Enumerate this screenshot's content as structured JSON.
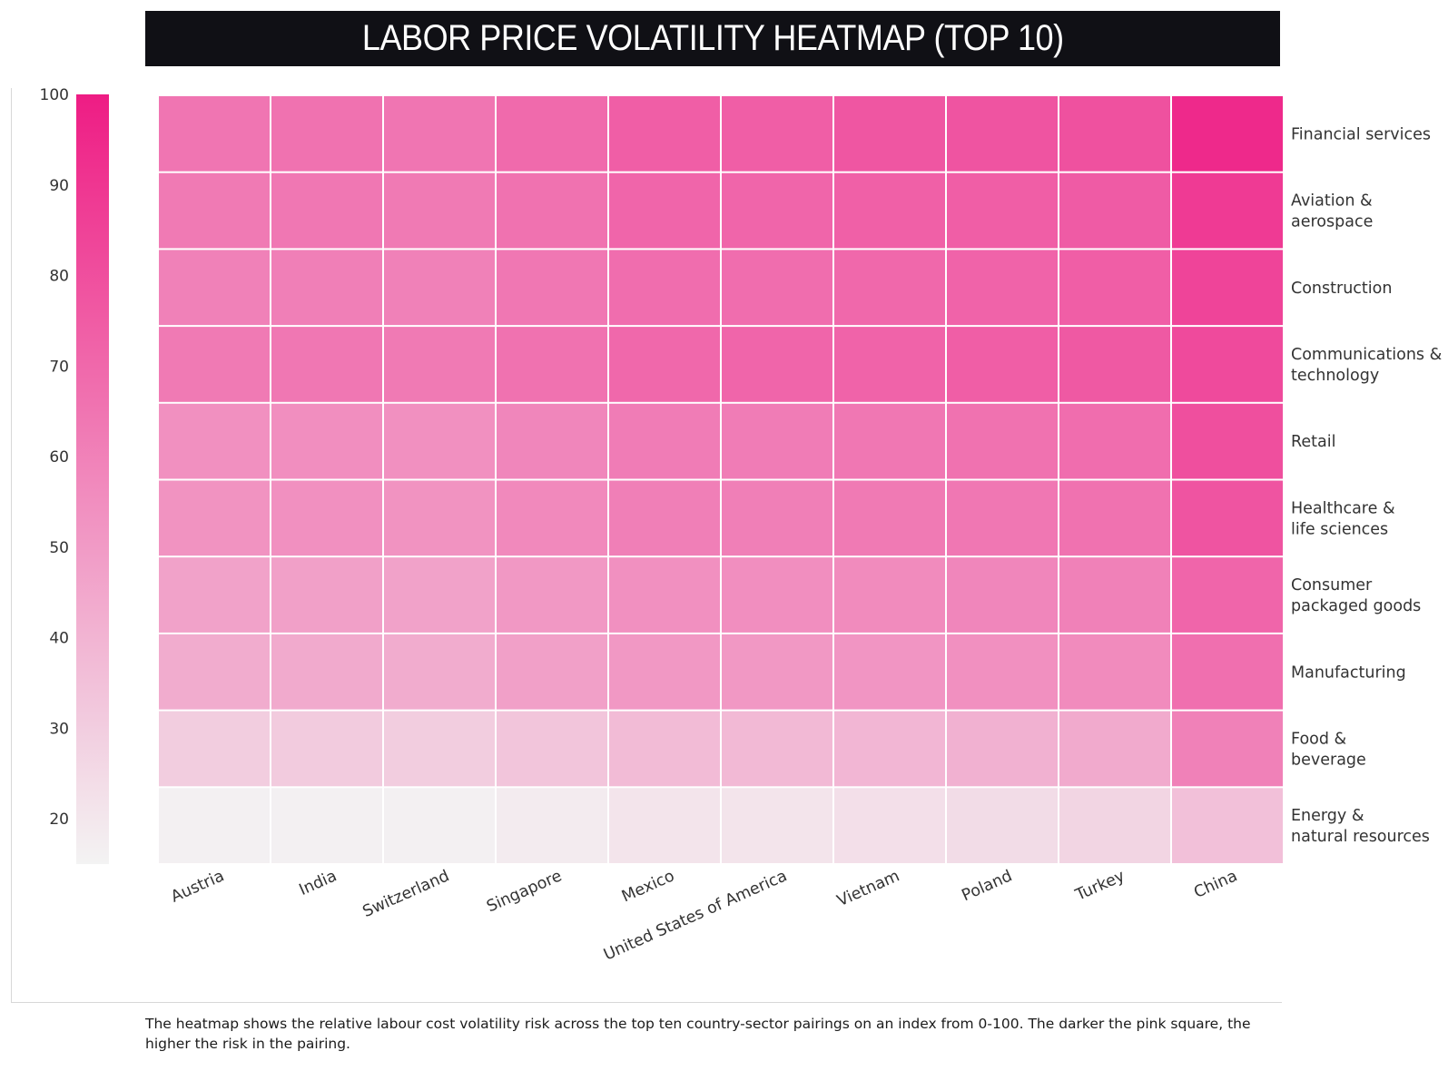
{
  "chart_data": {
    "type": "heatmap",
    "title": "LABOR PRICE VOLATILITY HEATMAP (TOP 10)",
    "xlabel": "",
    "ylabel": "",
    "x_categories": [
      "Austria",
      "India",
      "Switzerland",
      "Singapore",
      "Mexico",
      "United States of America",
      "Vietnam",
      "Poland",
      "Turkey",
      "China"
    ],
    "y_categories": [
      "Financial services",
      "Aviation & aerospace",
      "Construction",
      "Communications & technology",
      "Retail",
      "Healthcare & life sciences",
      "Consumer packaged goods",
      "Manufacturing",
      "Food & beverage",
      "Energy & natural resources"
    ],
    "y_category_lines": [
      [
        "Financial services"
      ],
      [
        "Aviation &",
        "aerospace"
      ],
      [
        "Construction"
      ],
      [
        "Communications &",
        "technology"
      ],
      [
        "Retail"
      ],
      [
        "Healthcare &",
        "life sciences"
      ],
      [
        "Consumer",
        "packaged goods"
      ],
      [
        "Manufacturing"
      ],
      [
        "Food &",
        "beverage"
      ],
      [
        "Energy &",
        "natural resources"
      ]
    ],
    "values": [
      [
        65,
        66,
        65,
        69,
        74,
        74,
        77,
        78,
        79,
        95
      ],
      [
        63,
        64,
        63,
        66,
        71,
        71,
        73,
        74,
        75,
        88
      ],
      [
        60,
        61,
        60,
        64,
        68,
        68,
        70,
        72,
        74,
        84
      ],
      [
        63,
        64,
        63,
        66,
        70,
        71,
        72,
        74,
        76,
        82
      ],
      [
        54,
        55,
        54,
        58,
        62,
        62,
        64,
        66,
        68,
        80
      ],
      [
        53,
        54,
        53,
        57,
        61,
        61,
        63,
        64,
        66,
        78
      ],
      [
        47,
        48,
        47,
        51,
        54,
        55,
        56,
        58,
        60,
        71
      ],
      [
        43,
        44,
        43,
        48,
        51,
        51,
        52,
        54,
        56,
        67
      ],
      [
        30,
        31,
        30,
        33,
        37,
        38,
        39,
        41,
        44,
        60
      ],
      [
        16,
        16,
        16,
        18,
        21,
        21,
        23,
        24,
        27,
        35
      ]
    ],
    "colorbar": {
      "min": 15,
      "max": 100,
      "ticks": [
        20,
        30,
        40,
        50,
        60,
        70,
        80,
        90,
        100
      ],
      "low_color": "#f3f3f3",
      "high_color": "#ee1c84"
    },
    "legend": "colorbar-left",
    "grid": true
  },
  "footer": {
    "note": "The heatmap shows the relative labour cost volatility risk across the top ten country-sector pairings on an index from 0-100. The darker the pink square, the higher the risk in the pairing."
  }
}
